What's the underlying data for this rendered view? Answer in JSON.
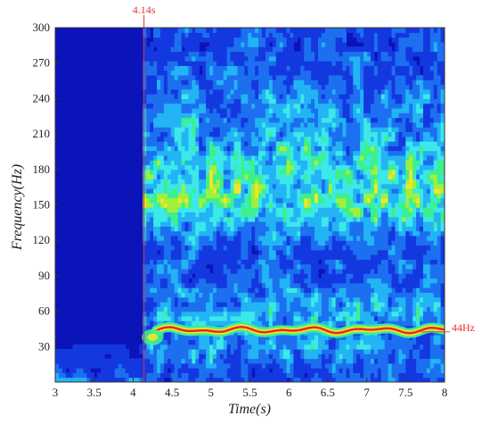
{
  "chart_data": {
    "type": "heatmap",
    "title": "",
    "xlabel": "Time(s)",
    "ylabel": "Frequency(Hz)",
    "xlim": [
      3,
      8
    ],
    "ylim": [
      0,
      300
    ],
    "x_ticks": [
      "3",
      "3.5",
      "4",
      "4.5",
      "5",
      "5.5",
      "6",
      "6.5",
      "7",
      "7.5",
      "8"
    ],
    "y_ticks": [
      "30",
      "60",
      "90",
      "120",
      "150",
      "180",
      "210",
      "240",
      "270",
      "300"
    ],
    "grid": false,
    "legend": "none",
    "colormap": [
      "#0a14b8",
      "#1438e0",
      "#1c70f0",
      "#22b4f4",
      "#3ce8e8",
      "#3cf08c",
      "#a0f03c",
      "#f0e628",
      "#f08c28",
      "#e82828"
    ],
    "onset_time": 4.14,
    "dominant_frequency": 44,
    "annotations": [
      {
        "text": "4.14s",
        "x": 4.14,
        "target": "onset-line"
      },
      {
        "text": "44Hz",
        "y": 44,
        "target": "dominant-band"
      }
    ],
    "regions": [
      {
        "name": "quiet",
        "t": [
          3,
          4.14
        ],
        "f": [
          0,
          300
        ],
        "intensity": "low"
      },
      {
        "name": "dominant-band",
        "t": [
          4.3,
          8
        ],
        "f": [
          40,
          48
        ],
        "intensity": "high"
      },
      {
        "name": "broadband-mid",
        "t": [
          4.14,
          8
        ],
        "f": [
          130,
          180
        ],
        "intensity": "medium"
      },
      {
        "name": "broadband-low",
        "t": [
          4.14,
          8
        ],
        "f": [
          0,
          120
        ],
        "intensity": "low-medium"
      }
    ]
  }
}
